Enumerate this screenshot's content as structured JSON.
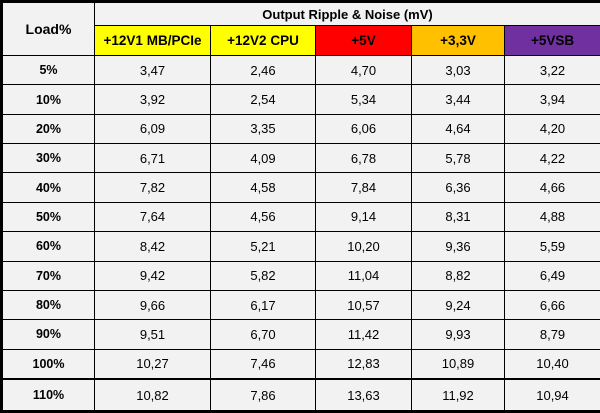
{
  "colors": {
    "cell_bg": "#F2F2F2",
    "border": "#000000",
    "text": "#000000",
    "rail_yellow": "#FFFF00",
    "rail_red": "#FF0000",
    "rail_orange": "#FFC000",
    "rail_purple": "#7030A0"
  },
  "table": {
    "corner_label": "Load%",
    "title": "Output Ripple & Noise (mV)",
    "columns": [
      {
        "label": "+12V1 MB/PCIe",
        "bg": "#FFFF00",
        "fg": "#000000"
      },
      {
        "label": "+12V2 CPU",
        "bg": "#FFFF00",
        "fg": "#000000"
      },
      {
        "label": "+5V",
        "bg": "#FF0000",
        "fg": "#000000"
      },
      {
        "label": "+3,3V",
        "bg": "#FFC000",
        "fg": "#000000"
      },
      {
        "label": "+5VSB",
        "bg": "#7030A0",
        "fg": "#000000"
      }
    ],
    "rows": [
      {
        "load": "5%",
        "values": [
          "3,47",
          "2,46",
          "4,70",
          "3,03",
          "3,22"
        ]
      },
      {
        "load": "10%",
        "values": [
          "3,92",
          "2,54",
          "5,34",
          "3,44",
          "3,94"
        ]
      },
      {
        "load": "20%",
        "values": [
          "6,09",
          "3,35",
          "6,06",
          "4,64",
          "4,20"
        ]
      },
      {
        "load": "30%",
        "values": [
          "6,71",
          "4,09",
          "6,78",
          "5,78",
          "4,22"
        ]
      },
      {
        "load": "40%",
        "values": [
          "7,82",
          "4,58",
          "7,84",
          "6,36",
          "4,66"
        ]
      },
      {
        "load": "50%",
        "values": [
          "7,64",
          "4,56",
          "9,14",
          "8,31",
          "4,88"
        ]
      },
      {
        "load": "60%",
        "values": [
          "8,42",
          "5,21",
          "10,20",
          "9,36",
          "5,59"
        ]
      },
      {
        "load": "70%",
        "values": [
          "9,42",
          "5,82",
          "11,04",
          "8,82",
          "6,49"
        ]
      },
      {
        "load": "80%",
        "values": [
          "9,66",
          "6,17",
          "10,57",
          "9,24",
          "6,66"
        ]
      },
      {
        "load": "90%",
        "values": [
          "9,51",
          "6,70",
          "11,42",
          "9,93",
          "8,79"
        ]
      },
      {
        "load": "100%",
        "values": [
          "10,27",
          "7,46",
          "12,83",
          "10,89",
          "10,40"
        ]
      },
      {
        "load": "110%",
        "values": [
          "10,82",
          "7,86",
          "13,63",
          "11,92",
          "10,94"
        ]
      }
    ]
  },
  "chart_data": {
    "type": "table",
    "title": "Output Ripple & Noise (mV)",
    "row_header": "Load%",
    "columns": [
      "+12V1 MB/PCIe",
      "+12V2 CPU",
      "+5V",
      "+3,3V",
      "+5VSB"
    ],
    "load_percent": [
      5,
      10,
      20,
      30,
      40,
      50,
      60,
      70,
      80,
      90,
      100,
      110
    ],
    "values_mV": [
      [
        3.47,
        2.46,
        4.7,
        3.03,
        3.22
      ],
      [
        3.92,
        2.54,
        5.34,
        3.44,
        3.94
      ],
      [
        6.09,
        3.35,
        6.06,
        4.64,
        4.2
      ],
      [
        6.71,
        4.09,
        6.78,
        5.78,
        4.22
      ],
      [
        7.82,
        4.58,
        7.84,
        6.36,
        4.66
      ],
      [
        7.64,
        4.56,
        9.14,
        8.31,
        4.88
      ],
      [
        8.42,
        5.21,
        10.2,
        9.36,
        5.59
      ],
      [
        9.42,
        5.82,
        11.04,
        8.82,
        6.49
      ],
      [
        9.66,
        6.17,
        10.57,
        9.24,
        6.66
      ],
      [
        9.51,
        6.7,
        11.42,
        9.93,
        8.79
      ],
      [
        10.27,
        7.46,
        12.83,
        10.89,
        10.4
      ],
      [
        10.82,
        7.86,
        13.63,
        11.92,
        10.94
      ]
    ],
    "decimal_separator": ","
  }
}
